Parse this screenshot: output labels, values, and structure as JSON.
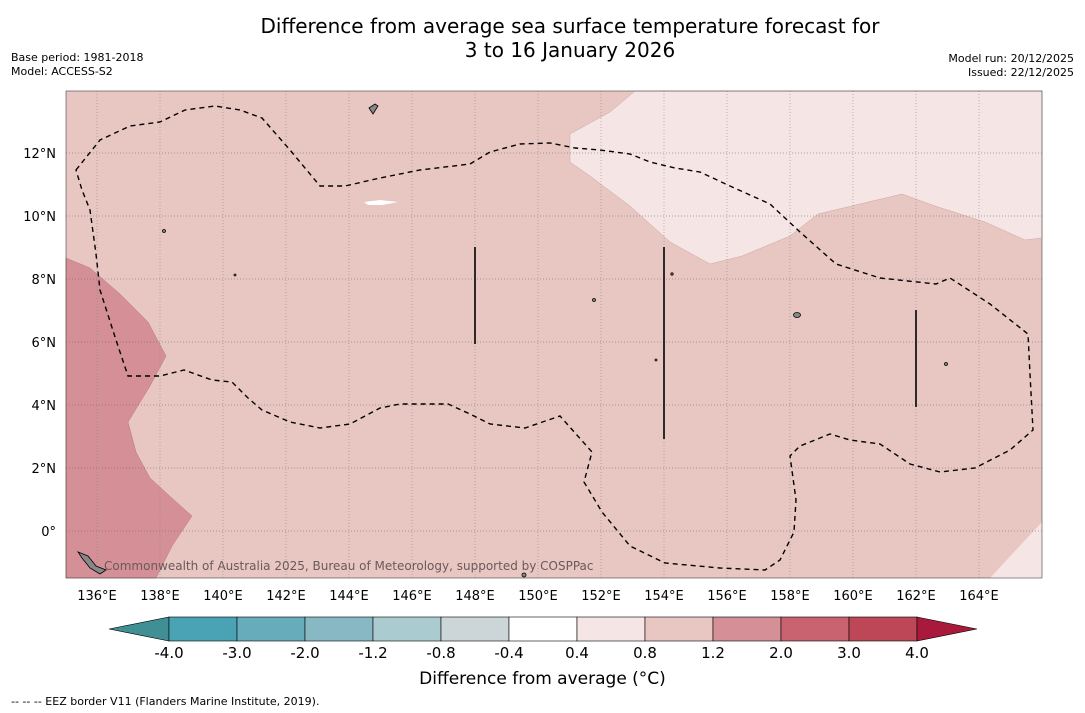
{
  "header": {
    "title_line1": "Difference from average sea surface temperature forecast for",
    "title_line2": "3 to 16 January 2026",
    "base_period": "Base period: 1981-2018",
    "model": "Model: ACCESS-S2",
    "model_run": "Model run: 20/12/2025",
    "issued": "Issued: 22/12/2025"
  },
  "map": {
    "lon_labels": [
      "136°E",
      "138°E",
      "140°E",
      "142°E",
      "144°E",
      "146°E",
      "148°E",
      "150°E",
      "152°E",
      "154°E",
      "156°E",
      "158°E",
      "160°E",
      "162°E",
      "164°E"
    ],
    "lat_labels": [
      "12°N",
      "10°N",
      "8°N",
      "6°N",
      "4°N",
      "2°N",
      "0°"
    ],
    "copyright": "Commonwealth of Australia 2025, Bureau of Meteorology, supported by COSPPac"
  },
  "colorbar": {
    "tick_labels": [
      "-4.0",
      "-3.0",
      "-2.0",
      "-1.2",
      "-0.8",
      "-0.4",
      "0.4",
      "0.8",
      "1.2",
      "2.0",
      "3.0",
      "4.0"
    ],
    "colors": [
      "#3f8f95",
      "#49a3b5",
      "#66acbb",
      "#88b8c4",
      "#aacbcf",
      "#ccd6d8",
      "#ffffff",
      "#f5e6e5",
      "#e8c6c2",
      "#d58f96",
      "#c9636f",
      "#bd4756",
      "#a8193b"
    ],
    "label": "Difference from average (°C)"
  },
  "footnote": "--  --  -- EEZ border V11 (Flanders Marine Institute, 2019)."
}
